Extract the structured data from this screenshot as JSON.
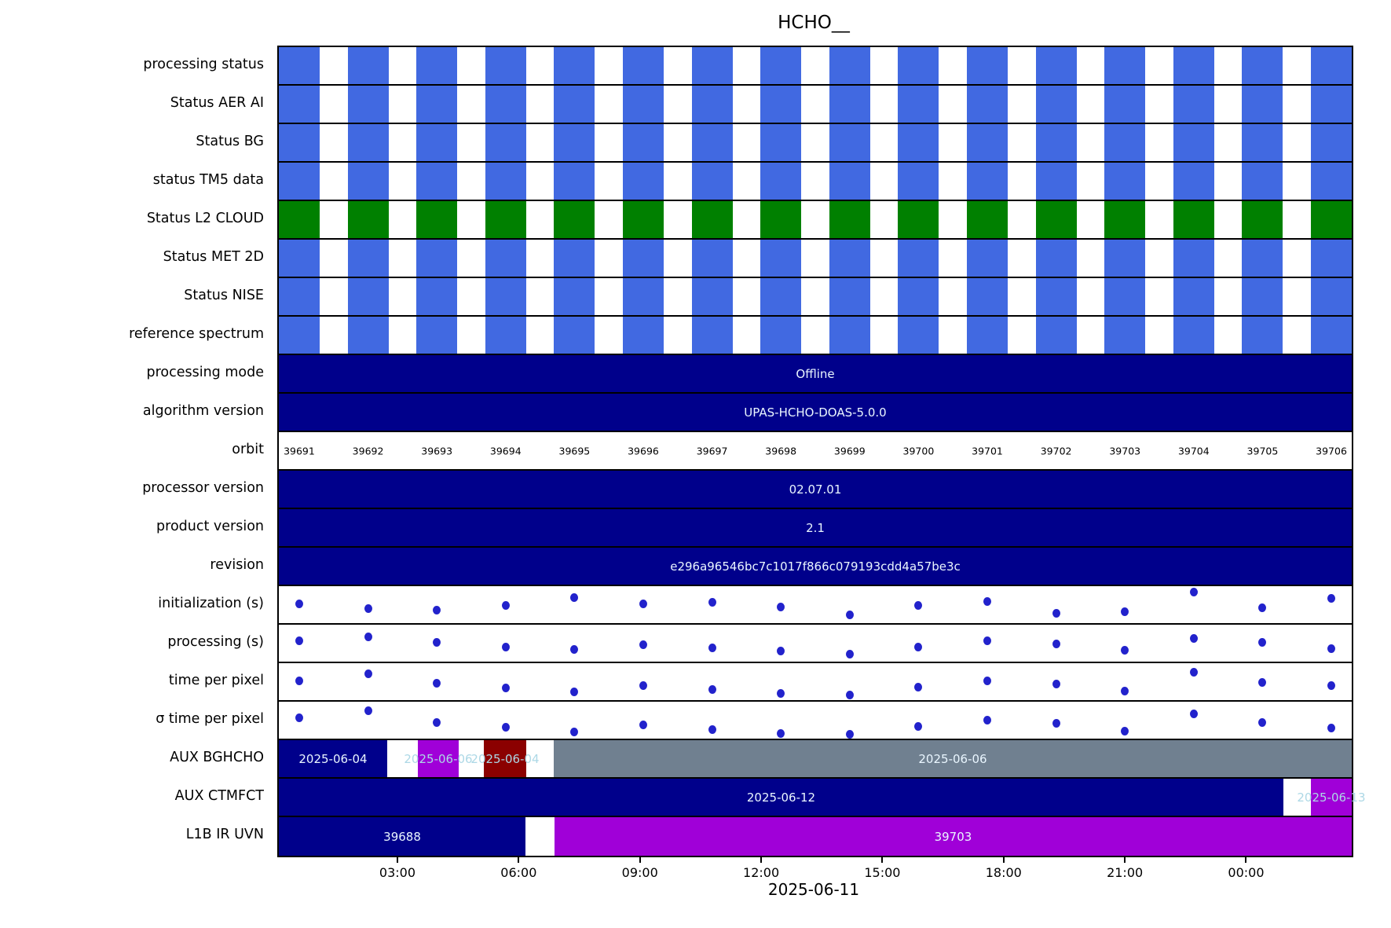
{
  "chart_data": {
    "type": "table",
    "title": "HCHO__",
    "xlabel": "2025-06-11",
    "x_ticks": {
      "labels": [
        "03:00",
        "06:00",
        "09:00",
        "12:00",
        "15:00",
        "18:00",
        "21:00",
        "00:00"
      ],
      "fracs": [
        0.112,
        0.225,
        0.338,
        0.451,
        0.564,
        0.677,
        0.79,
        0.903
      ]
    },
    "orbits": [
      "39691",
      "39692",
      "39693",
      "39694",
      "39695",
      "39696",
      "39697",
      "39698",
      "39699",
      "39700",
      "39701",
      "39702",
      "39703",
      "39704",
      "39705",
      "39706"
    ],
    "orbit_count": 16,
    "status_bar_width_frac": 0.038,
    "colors": {
      "blue": "#4169E1",
      "green": "#008000",
      "navy": "#00008B",
      "magenta": "#A000D8",
      "darkred": "#8B0000",
      "gray": "#708090",
      "dot": "#2222CC",
      "label_white": "#EAF6FF",
      "label_light": "#ADD8E6"
    },
    "rows": [
      {
        "label": "processing status",
        "type": "bars",
        "color": "blue"
      },
      {
        "label": "Status AER AI",
        "type": "bars",
        "color": "blue"
      },
      {
        "label": "Status BG",
        "type": "bars",
        "color": "blue"
      },
      {
        "label": "status TM5 data",
        "type": "bars",
        "color": "blue"
      },
      {
        "label": "Status L2  CLOUD",
        "type": "bars",
        "color": "green"
      },
      {
        "label": "Status MET 2D",
        "type": "bars",
        "color": "blue"
      },
      {
        "label": "Status NISE",
        "type": "bars",
        "color": "blue"
      },
      {
        "label": "reference spectrum",
        "type": "bars",
        "color": "blue"
      },
      {
        "label": "processing mode",
        "type": "full",
        "value": "Offline"
      },
      {
        "label": "algorithm version",
        "type": "full",
        "value": "UPAS-HCHO-DOAS-5.0.0"
      },
      {
        "label": "orbit",
        "type": "orbits"
      },
      {
        "label": "processor version",
        "type": "full",
        "value": "02.07.01"
      },
      {
        "label": "product version",
        "type": "full",
        "value": "2.1"
      },
      {
        "label": "revision",
        "type": "full",
        "value": "e296a96546bc7c1017f866c079193cdd4a57be3c"
      },
      {
        "label": "initialization (s)",
        "type": "scatter",
        "values": [
          0.45,
          0.62,
          0.68,
          0.5,
          0.22,
          0.45,
          0.38,
          0.55,
          0.82,
          0.5,
          0.35,
          0.78,
          0.72,
          0.02,
          0.58,
          0.25
        ]
      },
      {
        "label": "processing (s)",
        "type": "scatter",
        "values": [
          0.38,
          0.25,
          0.45,
          0.6,
          0.7,
          0.52,
          0.65,
          0.75,
          0.85,
          0.62,
          0.4,
          0.5,
          0.72,
          0.3,
          0.45,
          0.68
        ]
      },
      {
        "label": "time per pixel",
        "type": "scatter",
        "values": [
          0.45,
          0.2,
          0.52,
          0.7,
          0.82,
          0.62,
          0.75,
          0.88,
          0.95,
          0.68,
          0.45,
          0.55,
          0.8,
          0.15,
          0.5,
          0.6
        ]
      },
      {
        "label": "σ time per pixel",
        "type": "scatter",
        "values": [
          0.4,
          0.15,
          0.55,
          0.72,
          0.88,
          0.65,
          0.8,
          0.95,
          0.98,
          0.7,
          0.48,
          0.58,
          0.85,
          0.25,
          0.55,
          0.75
        ]
      },
      {
        "label": "AUX BGHCHO",
        "type": "segments",
        "segments": [
          {
            "start": 0.0,
            "end": 0.101,
            "color": "navy",
            "label": "2025-06-04",
            "text": "label_white"
          },
          {
            "start": 0.1296,
            "end": 0.1676,
            "color": "magenta",
            "label": "2025-06-06",
            "text": "label_light"
          },
          {
            "start": 0.1911,
            "end": 0.2306,
            "color": "darkred",
            "label": "2025-06-04",
            "text": "label_light"
          },
          {
            "start": 0.2562,
            "end": 1.0,
            "color": "gray",
            "label": "2025-06-06",
            "text": "label_white"
          }
        ]
      },
      {
        "label": "AUX CTMFCT",
        "type": "segments",
        "segments": [
          {
            "start": 0.0,
            "end": 0.9363,
            "color": "navy",
            "label": "2025-06-12",
            "text": "label_white"
          },
          {
            "start": 0.9619,
            "end": 1.0,
            "color": "magenta",
            "label": "2025-06-13",
            "text": "label_light"
          }
        ]
      },
      {
        "label": "L1B IR UVN",
        "type": "segments",
        "segments": [
          {
            "start": 0.0,
            "end": 0.2299,
            "color": "navy",
            "label": "39688",
            "text": "label_white"
          },
          {
            "start": 0.2569,
            "end": 1.0,
            "color": "magenta",
            "label": "39703",
            "text": "label_white"
          }
        ]
      }
    ]
  }
}
